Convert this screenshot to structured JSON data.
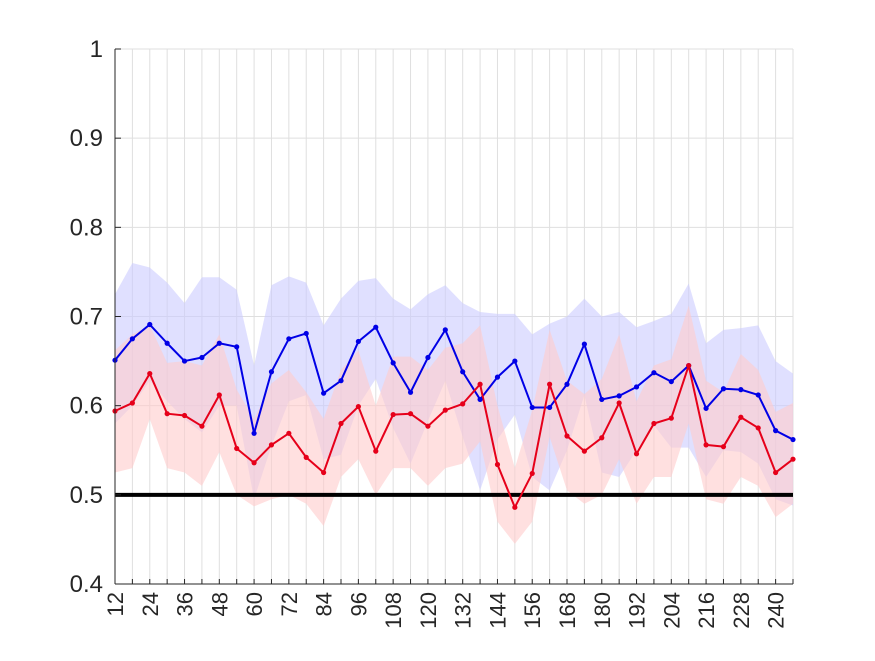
{
  "chart_data": {
    "type": "line",
    "title": "",
    "xlabel": "",
    "ylabel": "",
    "xlim": [
      12,
      246
    ],
    "ylim": [
      0.4,
      1.0
    ],
    "x_ticks": [
      "12",
      "24",
      "36",
      "48",
      "60",
      "72",
      "84",
      "96",
      "108",
      "120",
      "132",
      "144",
      "156",
      "168",
      "180",
      "192",
      "204",
      "216",
      "228",
      "240"
    ],
    "y_ticks": [
      "0.4",
      "0.5",
      "0.6",
      "0.7",
      "0.8",
      "0.9",
      "1"
    ],
    "grid": true,
    "legend": "none",
    "x": [
      12,
      18,
      24,
      30,
      36,
      42,
      48,
      54,
      60,
      66,
      72,
      78,
      84,
      90,
      96,
      102,
      108,
      114,
      120,
      126,
      132,
      138,
      144,
      150,
      156,
      162,
      168,
      174,
      180,
      186,
      192,
      198,
      204,
      210,
      216,
      222,
      228,
      234,
      240,
      246
    ],
    "series": [
      {
        "color": "#0000e6",
        "band_color": "#ccccff",
        "values": [
          0.651,
          0.675,
          0.691,
          0.67,
          0.65,
          0.654,
          0.67,
          0.666,
          0.569,
          0.638,
          0.675,
          0.681,
          0.614,
          0.628,
          0.672,
          0.688,
          0.648,
          0.615,
          0.654,
          0.685,
          0.638,
          0.607,
          0.632,
          0.65,
          0.598,
          0.598,
          0.624,
          0.669,
          0.607,
          0.611,
          0.621,
          0.637,
          0.627,
          0.645,
          0.597,
          0.619,
          0.618,
          0.612,
          0.572,
          0.562
        ],
        "upper": [
          0.725,
          0.76,
          0.755,
          0.738,
          0.715,
          0.744,
          0.744,
          0.73,
          0.645,
          0.735,
          0.745,
          0.738,
          0.69,
          0.72,
          0.74,
          0.743,
          0.72,
          0.708,
          0.725,
          0.735,
          0.715,
          0.705,
          0.703,
          0.703,
          0.68,
          0.692,
          0.7,
          0.72,
          0.7,
          0.705,
          0.688,
          0.695,
          0.703,
          0.737,
          0.67,
          0.685,
          0.687,
          0.69,
          0.65,
          0.636
        ],
        "lower": [
          0.58,
          0.6,
          0.628,
          0.605,
          0.585,
          0.57,
          0.6,
          0.6,
          0.495,
          0.555,
          0.605,
          0.612,
          0.54,
          0.545,
          0.6,
          0.63,
          0.575,
          0.535,
          0.583,
          0.628,
          0.565,
          0.505,
          0.562,
          0.59,
          0.52,
          0.505,
          0.55,
          0.612,
          0.525,
          0.52,
          0.55,
          0.578,
          0.553,
          0.553,
          0.52,
          0.55,
          0.548,
          0.535,
          0.495,
          0.488
        ]
      },
      {
        "color": "#e6001a",
        "band_color": "#ffcccc",
        "values": [
          0.594,
          0.603,
          0.636,
          0.591,
          0.589,
          0.577,
          0.612,
          0.552,
          0.536,
          0.556,
          0.569,
          0.542,
          0.525,
          0.58,
          0.599,
          0.549,
          0.59,
          0.591,
          0.577,
          0.595,
          0.602,
          0.624,
          0.534,
          0.486,
          0.524,
          0.624,
          0.566,
          0.549,
          0.564,
          0.603,
          0.546,
          0.58,
          0.586,
          0.645,
          0.556,
          0.554,
          0.587,
          0.575,
          0.525,
          0.54
        ],
        "upper": [
          0.662,
          0.68,
          0.69,
          0.648,
          0.65,
          0.645,
          0.68,
          0.618,
          0.585,
          0.625,
          0.64,
          0.615,
          0.585,
          0.64,
          0.662,
          0.6,
          0.655,
          0.655,
          0.64,
          0.665,
          0.67,
          0.69,
          0.6,
          0.53,
          0.595,
          0.685,
          0.628,
          0.613,
          0.63,
          0.68,
          0.605,
          0.645,
          0.652,
          0.712,
          0.628,
          0.615,
          0.658,
          0.64,
          0.593,
          0.603
        ],
        "lower": [
          0.525,
          0.53,
          0.585,
          0.53,
          0.525,
          0.51,
          0.548,
          0.5,
          0.487,
          0.495,
          0.5,
          0.49,
          0.465,
          0.52,
          0.54,
          0.5,
          0.53,
          0.53,
          0.51,
          0.53,
          0.535,
          0.56,
          0.47,
          0.445,
          0.47,
          0.565,
          0.505,
          0.49,
          0.5,
          0.54,
          0.49,
          0.52,
          0.52,
          0.58,
          0.495,
          0.49,
          0.52,
          0.51,
          0.475,
          0.49
        ]
      }
    ],
    "reference_line": {
      "y": 0.5,
      "color": "#000000"
    }
  }
}
